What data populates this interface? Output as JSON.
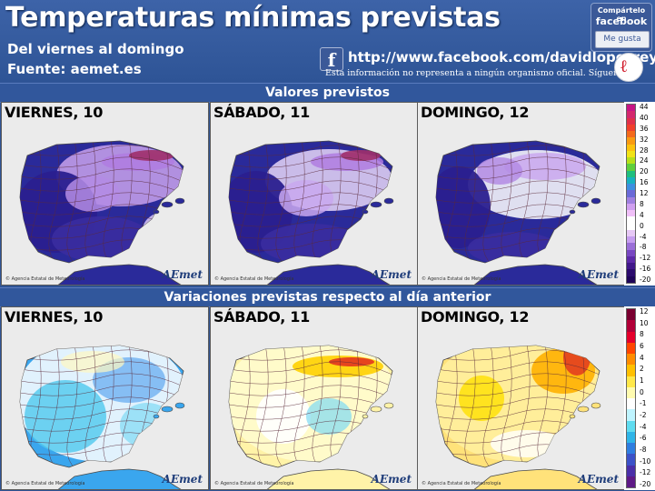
{
  "header": {
    "title": "Temperaturas mínimas previstas",
    "subtitle": "Del viernes al domingo",
    "source": "Fuente: aemet.es",
    "facebook_url": "http://www.facebook.com/davidlopezrey",
    "disclaimer": "Esta información no representa a ningún organismo oficial. Sígueme en",
    "share_line1": "Compártelo en",
    "share_line2": "facebook",
    "like_label": "Me gusta"
  },
  "sections": {
    "values_title": "Valores previstos",
    "variations_title": "Variaciones previstas respecto al día anterior"
  },
  "maps_top": [
    {
      "label": "VIERNES, 10",
      "brand": "AEmet",
      "agency": "© Agencia Estatal de Meteorología"
    },
    {
      "label": "SÁBADO, 11",
      "brand": "AEmet",
      "agency": "© Agencia Estatal de Meteorología"
    },
    {
      "label": "DOMINGO, 12",
      "brand": "AEmet",
      "agency": "© Agencia Estatal de Meteorología"
    }
  ],
  "maps_bottom": [
    {
      "label": "VIERNES, 10",
      "brand": "AEmet",
      "agency": "© Agencia Estatal de Meteorología"
    },
    {
      "label": "SÁBADO, 11",
      "brand": "AEmet",
      "agency": "© Agencia Estatal de Meteorología"
    },
    {
      "label": "DOMINGO, 12",
      "brand": "AEmet",
      "agency": "© Agencia Estatal de Meteorología"
    }
  ],
  "scale_values": {
    "ticks": [
      "44",
      "40",
      "36",
      "32",
      "28",
      "24",
      "20",
      "16",
      "12",
      "8",
      "4",
      "0",
      "-4",
      "-8",
      "-12",
      "-16",
      "-20"
    ],
    "colors": [
      "#c71585",
      "#d4286e",
      "#e0304a",
      "#f0402c",
      "#f46a1c",
      "#f99b12",
      "#fcc20e",
      "#f1e316",
      "#b6e019",
      "#5fcf3c",
      "#1fbf7f",
      "#18b1c0",
      "#3d8fe0",
      "#6a6ad8",
      "#a080e0",
      "#d0a0f0",
      "#f0c0f8",
      "#ffffff",
      "#ffffff",
      "#e7c9f6",
      "#c79ef0",
      "#9b6fd8",
      "#7847c2",
      "#5d2aa8",
      "#41178a",
      "#2b0b6d",
      "#1e0458"
    ]
  },
  "scale_variations": {
    "ticks": [
      "12",
      "10",
      "8",
      "6",
      "4",
      "2",
      "1",
      "0",
      "-1",
      "-2",
      "-4",
      "-6",
      "-8",
      "-10",
      "-12",
      "-20"
    ],
    "colors": [
      "#7a0030",
      "#b10038",
      "#e4002b",
      "#ff4500",
      "#ff8c00",
      "#ffc000",
      "#ffe84a",
      "#fffbb0",
      "#ffffff",
      "#bff4ff",
      "#5fdcf0",
      "#2fb5e8",
      "#2f7ee0",
      "#3c52c8",
      "#4a2fa8",
      "#5e1a86"
    ]
  }
}
